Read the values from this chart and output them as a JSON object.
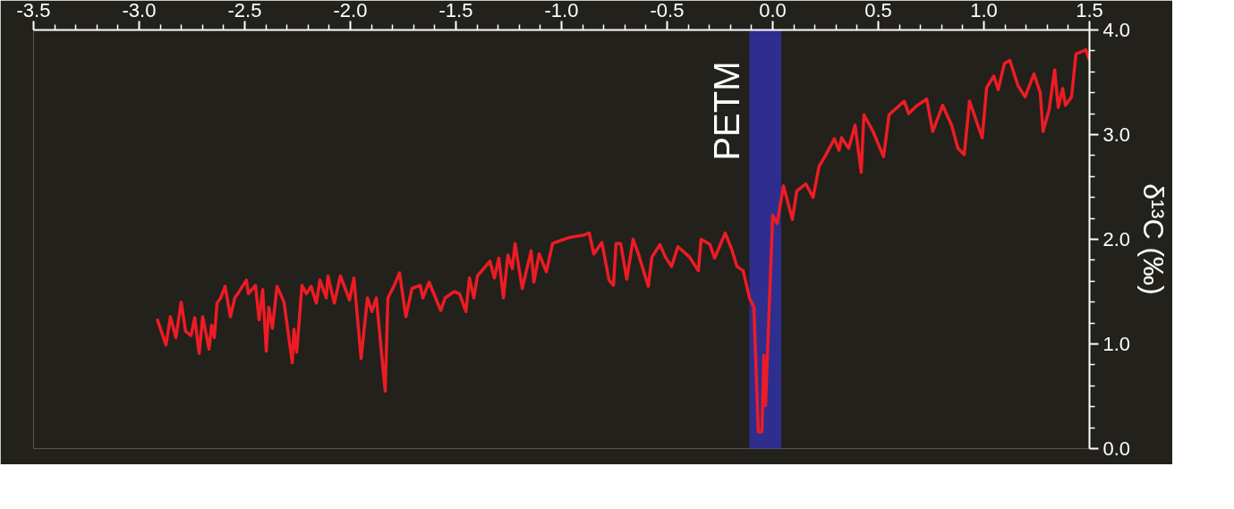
{
  "chart_data": {
    "type": "line",
    "ylabel": "δ¹³C (‰)",
    "x": [
      -2.915,
      -2.873,
      -2.852,
      -2.826,
      -2.801,
      -2.78,
      -2.754,
      -2.737,
      -2.716,
      -2.699,
      -2.669,
      -2.657,
      -2.644,
      -2.631,
      -2.614,
      -2.593,
      -2.568,
      -2.547,
      -2.53,
      -2.492,
      -2.483,
      -2.449,
      -2.432,
      -2.415,
      -2.398,
      -2.386,
      -2.369,
      -2.347,
      -2.314,
      -2.275,
      -2.267,
      -2.254,
      -2.229,
      -2.208,
      -2.186,
      -2.161,
      -2.144,
      -2.114,
      -2.106,
      -2.076,
      -2.047,
      -2.004,
      -1.983,
      -1.949,
      -1.919,
      -1.898,
      -1.877,
      -1.835,
      -1.822,
      -1.792,
      -1.767,
      -1.737,
      -1.708,
      -1.669,
      -1.657,
      -1.627,
      -1.572,
      -1.551,
      -1.508,
      -1.483,
      -1.453,
      -1.436,
      -1.415,
      -1.398,
      -1.339,
      -1.318,
      -1.297,
      -1.275,
      -1.254,
      -1.233,
      -1.22,
      -1.186,
      -1.144,
      -1.131,
      -1.106,
      -1.072,
      -1.042,
      -1.03,
      -0.958,
      -0.894,
      -0.869,
      -0.847,
      -0.809,
      -0.775,
      -0.754,
      -0.742,
      -0.72,
      -0.691,
      -0.661,
      -0.636,
      -0.589,
      -0.572,
      -0.534,
      -0.508,
      -0.479,
      -0.449,
      -0.394,
      -0.352,
      -0.339,
      -0.297,
      -0.275,
      -0.225,
      -0.195,
      -0.169,
      -0.14,
      -0.11,
      -0.089,
      -0.068,
      -0.051,
      -0.042,
      -0.034,
      0.0,
      0.021,
      0.051,
      0.093,
      0.114,
      0.157,
      0.191,
      0.22,
      0.25,
      0.292,
      0.314,
      0.326,
      0.36,
      0.39,
      0.419,
      0.432,
      0.475,
      0.525,
      0.551,
      0.623,
      0.644,
      0.678,
      0.729,
      0.758,
      0.805,
      0.847,
      0.877,
      0.907,
      0.932,
      0.992,
      1.013,
      1.047,
      1.068,
      1.097,
      1.123,
      1.161,
      1.195,
      1.237,
      1.267,
      1.28,
      1.309,
      1.335,
      1.352,
      1.373,
      1.386,
      1.415,
      1.436,
      1.483,
      1.5
    ],
    "series": [
      {
        "color": "#ed1c24",
        "values": [
          1.24,
          0.99,
          1.26,
          1.06,
          1.4,
          1.12,
          1.08,
          1.25,
          0.91,
          1.26,
          0.95,
          1.18,
          1.06,
          1.39,
          1.44,
          1.55,
          1.26,
          1.44,
          1.49,
          1.61,
          1.48,
          1.56,
          1.23,
          1.52,
          0.93,
          1.35,
          1.15,
          1.55,
          1.4,
          0.82,
          1.14,
          0.92,
          1.56,
          1.48,
          1.55,
          1.39,
          1.61,
          1.44,
          1.65,
          1.39,
          1.65,
          1.42,
          1.63,
          0.86,
          1.44,
          1.31,
          1.44,
          0.55,
          1.44,
          1.56,
          1.68,
          1.26,
          1.53,
          1.56,
          1.44,
          1.59,
          1.32,
          1.44,
          1.5,
          1.48,
          1.31,
          1.63,
          1.44,
          1.65,
          1.79,
          1.63,
          1.82,
          1.44,
          1.85,
          1.72,
          1.96,
          1.53,
          1.89,
          1.59,
          1.86,
          1.69,
          1.96,
          1.97,
          2.02,
          2.04,
          2.06,
          1.86,
          1.97,
          1.61,
          1.56,
          1.96,
          1.96,
          1.62,
          2.0,
          1.86,
          1.55,
          1.83,
          1.95,
          1.83,
          1.74,
          1.93,
          1.83,
          1.7,
          2.0,
          1.95,
          1.82,
          2.06,
          1.91,
          1.74,
          1.7,
          1.44,
          1.35,
          0.16,
          0.16,
          0.89,
          0.41,
          2.23,
          2.15,
          2.51,
          2.19,
          2.46,
          2.53,
          2.4,
          2.7,
          2.8,
          2.96,
          2.85,
          2.97,
          2.87,
          3.09,
          2.64,
          3.19,
          3.03,
          2.79,
          3.19,
          3.32,
          3.2,
          3.27,
          3.34,
          3.03,
          3.28,
          3.09,
          2.87,
          2.81,
          3.32,
          2.97,
          3.45,
          3.56,
          3.43,
          3.68,
          3.71,
          3.47,
          3.36,
          3.58,
          3.4,
          3.03,
          3.24,
          3.62,
          3.26,
          3.44,
          3.28,
          3.36,
          3.77,
          3.81,
          3.71
        ]
      }
    ],
    "xlim": [
      -3.5,
      1.5
    ],
    "xticks": [
      {
        "value": -3.5,
        "label": "-3.5"
      },
      {
        "value": -3.0,
        "label": "-3.0"
      },
      {
        "value": -2.5,
        "label": "-2.5"
      },
      {
        "value": -2.0,
        "label": "-2.0"
      },
      {
        "value": -1.5,
        "label": "-1.5"
      },
      {
        "value": -1.0,
        "label": "-1.0"
      },
      {
        "value": -0.5,
        "label": "-0.5"
      },
      {
        "value": 0.0,
        "label": "0.0"
      },
      {
        "value": 0.5,
        "label": "0.5"
      },
      {
        "value": 1.0,
        "label": "1.0"
      },
      {
        "value": 1.5,
        "label": "1.5"
      }
    ],
    "ylim": [
      0,
      4
    ],
    "yticks": [
      {
        "value": 0,
        "label": "0.0"
      },
      {
        "value": 1,
        "label": "1.0"
      },
      {
        "value": 2,
        "label": "2.0"
      },
      {
        "value": 3,
        "label": "3.0"
      },
      {
        "value": 4,
        "label": "4.0"
      }
    ],
    "bands": [
      {
        "axis": "x",
        "from": -0.11,
        "to": 0.04,
        "label": "PETM",
        "color": "#2e2e8f"
      }
    ]
  }
}
